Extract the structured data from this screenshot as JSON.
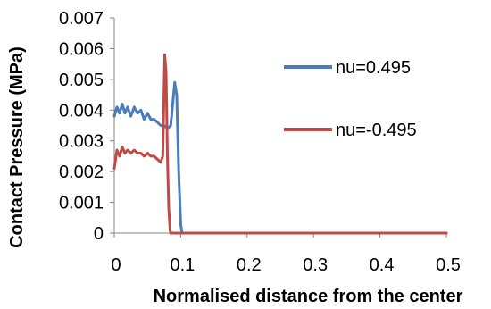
{
  "chart_data": {
    "type": "line",
    "title": "",
    "xlabel": "Normalised distance from the center",
    "ylabel": "Contact Pressure (MPa)",
    "xlim": [
      0,
      0.5
    ],
    "ylim": [
      0,
      0.007
    ],
    "x_ticks": [
      "0",
      "0.1",
      "0.2",
      "0.3",
      "0.4",
      "0.5"
    ],
    "y_ticks": [
      "0",
      "0.001",
      "0.002",
      "0.003",
      "0.004",
      "0.005",
      "0.006",
      "0.007"
    ],
    "grid": false,
    "legend_position": "right",
    "series": [
      {
        "name": "nu=0.495",
        "color": "#4a7ebb",
        "x": [
          0,
          0.004,
          0.008,
          0.012,
          0.016,
          0.02,
          0.025,
          0.03,
          0.035,
          0.04,
          0.045,
          0.05,
          0.055,
          0.06,
          0.065,
          0.07,
          0.075,
          0.08,
          0.085,
          0.088,
          0.091,
          0.094,
          0.097,
          0.1,
          0.102,
          0.11,
          0.2,
          0.3,
          0.4,
          0.5
        ],
        "y": [
          0.0038,
          0.0041,
          0.0039,
          0.0042,
          0.0039,
          0.0041,
          0.0038,
          0.0041,
          0.0039,
          0.004,
          0.0037,
          0.0039,
          0.0037,
          0.0037,
          0.0036,
          0.0035,
          0.0035,
          0.0034,
          0.0035,
          0.0042,
          0.0049,
          0.0045,
          0.002,
          0.0003,
          0,
          0,
          0,
          0,
          0,
          0
        ]
      },
      {
        "name": "nu=-0.495",
        "color": "#be4b48",
        "x": [
          0,
          0.004,
          0.008,
          0.012,
          0.016,
          0.02,
          0.025,
          0.03,
          0.035,
          0.04,
          0.045,
          0.05,
          0.055,
          0.06,
          0.065,
          0.07,
          0.073,
          0.076,
          0.078,
          0.08,
          0.082,
          0.084,
          0.085,
          0.09,
          0.1,
          0.2,
          0.3,
          0.4,
          0.5
        ],
        "y": [
          0.0021,
          0.0027,
          0.0025,
          0.0028,
          0.0026,
          0.0027,
          0.0026,
          0.0027,
          0.0026,
          0.0026,
          0.0025,
          0.0026,
          0.0025,
          0.0025,
          0.0024,
          0.0023,
          0.0025,
          0.0058,
          0.0052,
          0.0025,
          0.0008,
          0.0001,
          0,
          0,
          0,
          0,
          0,
          0,
          0
        ]
      }
    ]
  }
}
